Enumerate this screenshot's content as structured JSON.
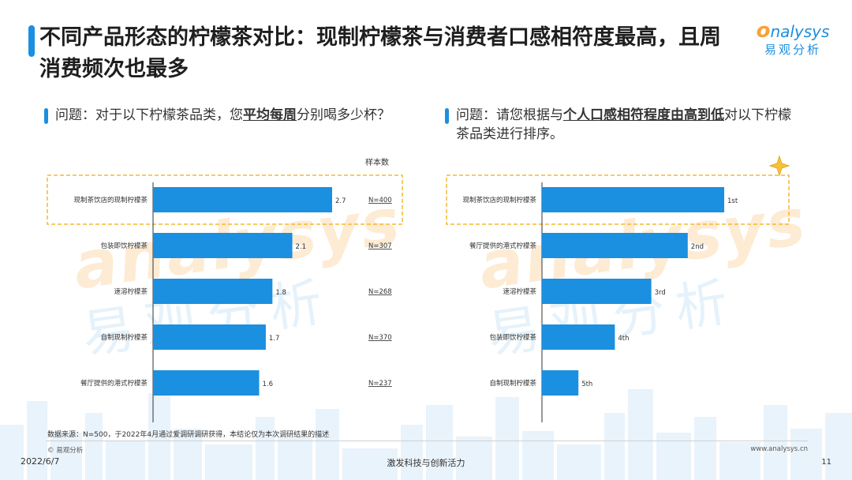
{
  "title": "不同产品形态的柠檬茶对比：现制柠檬茶与消费者口感相符度最高，且周消费频次也最多",
  "logo": {
    "en_rest": "nalysys",
    "cn": "易观分析"
  },
  "colors": {
    "accent": "#1b8fe0",
    "highlight": "#f5b82e",
    "bar": "#1b8fe0"
  },
  "left_question": {
    "prefix": "问题：对于以下柠檬茶品类，您",
    "emphasis": "平均每周",
    "suffix": "分别喝多少杯？"
  },
  "right_question": {
    "prefix": "问题：请您根据与",
    "emphasis": "个人口感相符程度由高到低",
    "suffix": "对以下柠檬茶品类进行排序。"
  },
  "sample_header": "样本数",
  "chart_data": [
    {
      "type": "bar",
      "orientation": "horizontal",
      "categories": [
        "现制茶饮店的现制柠檬茶",
        "包装即饮柠檬茶",
        "速溶柠檬茶",
        "自制现制柠檬茶",
        "餐厅提供的港式柠檬茶"
      ],
      "values": [
        2.7,
        2.1,
        1.8,
        1.7,
        1.6
      ],
      "labels": [
        "2.7",
        "2.1",
        "1.8",
        "1.7",
        "1.6"
      ],
      "sample_sizes": [
        "N=400",
        "N=307",
        "N=268",
        "N=370",
        "N=237"
      ],
      "highlight_index": 0
    },
    {
      "type": "bar",
      "orientation": "horizontal",
      "categories": [
        "现制茶饮店的现制柠檬茶",
        "餐厅提供的港式柠檬茶",
        "速溶柠檬茶",
        "包装即饮柠檬茶",
        "自制现制柠檬茶"
      ],
      "values": [
        5,
        4,
        3,
        2,
        1
      ],
      "labels": [
        "1st",
        "2nd",
        "3rd",
        "4th",
        "5th"
      ],
      "highlight_index": 0
    }
  ],
  "source": "数据来源：N=500，于2022年4月通过爱调研调研获得，本结论仅为本次调研结果的描述",
  "copyright": "© 易观分析",
  "website": "www.analysys.cn",
  "date": "2022/6/7",
  "slogan": "激发科技与创新活力",
  "page_number": "11"
}
